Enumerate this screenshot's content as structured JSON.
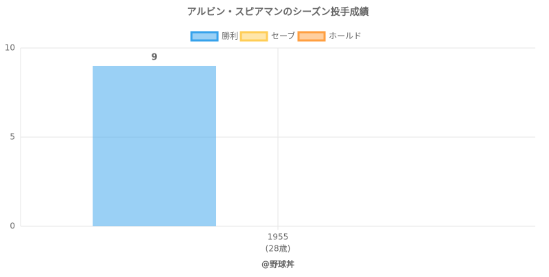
{
  "chart_data": {
    "type": "bar",
    "title": "アルビン・スピアマンのシーズン投手成績",
    "categories": [
      "1955"
    ],
    "category_sublabels": [
      "(28歳)"
    ],
    "series": [
      {
        "name": "勝利",
        "color": "#36a2eb",
        "values": [
          9
        ]
      },
      {
        "name": "セーブ",
        "color": "#ffcd56",
        "values": [
          0
        ]
      },
      {
        "name": "ホールド",
        "color": "#ff9f40",
        "values": [
          0
        ]
      }
    ],
    "ylim": [
      0,
      10
    ],
    "yticks": [
      0,
      5,
      10
    ],
    "grid": true,
    "legend": "top",
    "show_value_labels": true,
    "credit": "@野球丼"
  }
}
